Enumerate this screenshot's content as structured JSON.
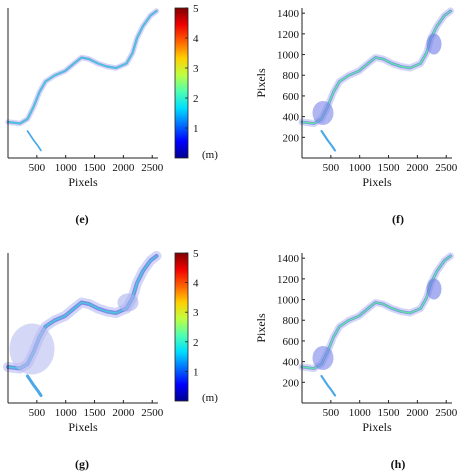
{
  "colors": {
    "axis": "#222222",
    "colormap": [
      "#00008f",
      "#0000ff",
      "#006fff",
      "#00dfff",
      "#50ffaf",
      "#bfff40",
      "#ffcf00",
      "#ff6000",
      "#f00000",
      "#800000"
    ]
  },
  "colorbar": {
    "ticks": [
      "1",
      "2",
      "3",
      "4",
      "5"
    ],
    "unit": "(m)",
    "range": [
      0,
      5
    ]
  },
  "chart_data": [
    {
      "type": "heatmap",
      "id": "e",
      "caption": "(e)",
      "xlabel": "Pixels",
      "ylabel": "",
      "xticks": [
        500,
        1000,
        1500,
        2000,
        2500
      ],
      "xtick_labels": [
        "500",
        "1000",
        "1500",
        "2000",
        "2500"
      ],
      "yticks": [],
      "xlim": [
        0,
        2600
      ],
      "ylim": [
        0,
        1450
      ],
      "has_colorbar": true,
      "content": "river-channel depth map (sparse coverage)"
    },
    {
      "type": "heatmap",
      "id": "f",
      "caption": "(f)",
      "xlabel": "Pixels",
      "ylabel": "Pixels",
      "xticks": [
        500,
        1000,
        1500,
        2000,
        2500
      ],
      "xtick_labels": [
        "500",
        "1000",
        "1500",
        "2000",
        "2500"
      ],
      "yticks": [
        200,
        400,
        600,
        800,
        1000,
        1200,
        1400
      ],
      "ytick_labels": [
        "200",
        "400",
        "600",
        "800",
        "1000",
        "1200",
        "1400"
      ],
      "xlim": [
        0,
        2600
      ],
      "ylim": [
        0,
        1450
      ],
      "has_colorbar": false,
      "content": "river-channel depth map"
    },
    {
      "type": "heatmap",
      "id": "g",
      "caption": "(g)",
      "xlabel": "Pixels",
      "ylabel": "",
      "xticks": [
        500,
        1000,
        1500,
        2000,
        2500
      ],
      "xtick_labels": [
        "500",
        "1000",
        "1500",
        "2000",
        "2500"
      ],
      "yticks": [],
      "xlim": [
        0,
        2600
      ],
      "ylim": [
        0,
        1450
      ],
      "has_colorbar": true,
      "content": "river-channel depth map (wide coverage)"
    },
    {
      "type": "heatmap",
      "id": "h",
      "caption": "(h)",
      "xlabel": "Pixels",
      "ylabel": "Pixels",
      "xticks": [
        500,
        1000,
        1500,
        2000,
        2500
      ],
      "xtick_labels": [
        "500",
        "1000",
        "1500",
        "2000",
        "2500"
      ],
      "yticks": [
        200,
        400,
        600,
        800,
        1000,
        1200,
        1400
      ],
      "ytick_labels": [
        "200",
        "400",
        "600",
        "800",
        "1000",
        "1200",
        "1400"
      ],
      "xlim": [
        0,
        2600
      ],
      "ylim": [
        0,
        1450
      ],
      "has_colorbar": false,
      "content": "river-channel depth map"
    }
  ]
}
